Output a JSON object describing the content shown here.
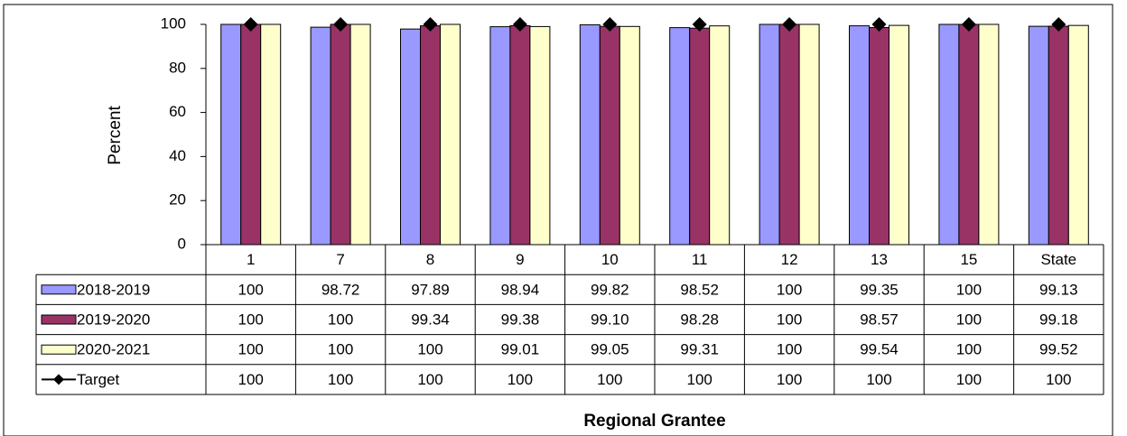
{
  "chart_data": {
    "type": "bar",
    "y_label": "Percent",
    "x_label": "Regional Grantee",
    "categories": [
      "1",
      "7",
      "8",
      "9",
      "10",
      "11",
      "12",
      "13",
      "15",
      "State"
    ],
    "ylim": [
      0,
      100
    ],
    "yticks": [
      0,
      20,
      40,
      60,
      80,
      100
    ],
    "series": [
      {
        "name": "2018-2019",
        "color": "#9999ff",
        "values": [
          100,
          98.72,
          97.89,
          98.94,
          99.82,
          98.52,
          100,
          99.35,
          100,
          99.13
        ]
      },
      {
        "name": "2019-2020",
        "color": "#993366",
        "values": [
          100,
          100,
          99.34,
          99.38,
          99.1,
          98.28,
          100,
          98.57,
          100,
          99.18
        ],
        "value_labels": [
          "100",
          "100",
          "99.34",
          "99.38",
          "99.10",
          "98.28",
          "100",
          "98.57",
          "100",
          "99.18"
        ]
      },
      {
        "name": "2020-2021",
        "color": "#ffffcc",
        "values": [
          100,
          100,
          100,
          99.01,
          99.05,
          99.31,
          100,
          99.54,
          100,
          99.52
        ]
      },
      {
        "name": "Target",
        "type": "line",
        "color": "#000000",
        "values": [
          100,
          100,
          100,
          100,
          100,
          100,
          100,
          100,
          100,
          100
        ]
      }
    ]
  }
}
